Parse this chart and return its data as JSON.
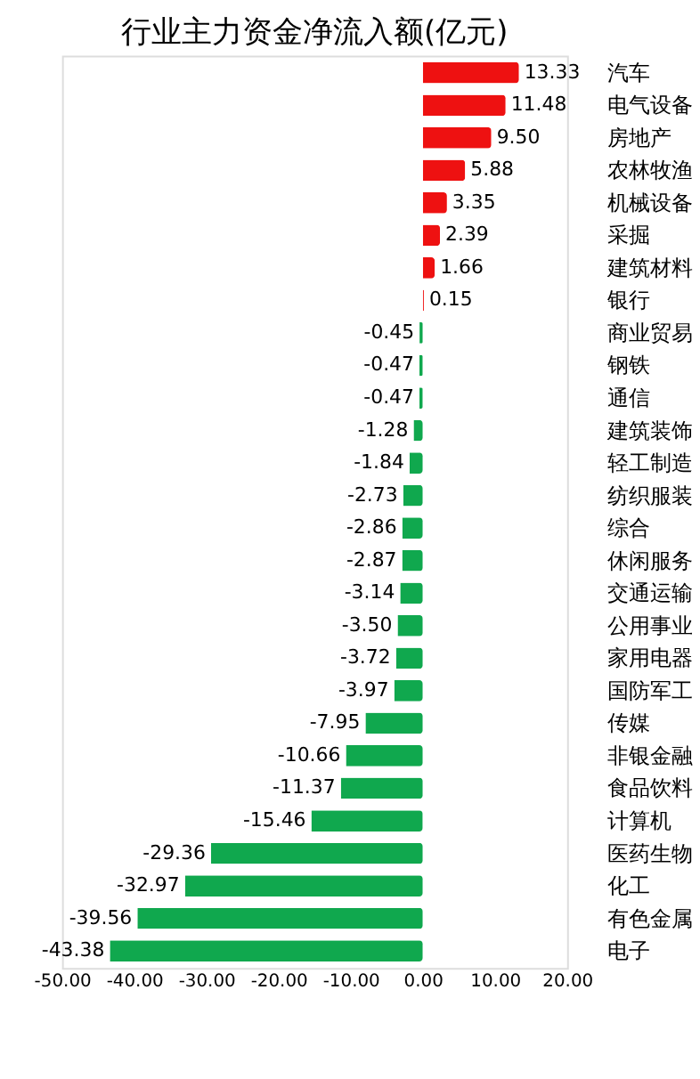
{
  "chart_data": {
    "type": "bar",
    "orientation": "horizontal",
    "title": "行业主力资金净流入额(亿元)",
    "categories": [
      "汽车",
      "电气设备",
      "房地产",
      "农林牧渔",
      "机械设备",
      "采掘",
      "建筑材料",
      "银行",
      "商业贸易",
      "钢铁",
      "通信",
      "建筑装饰",
      "轻工制造",
      "纺织服装",
      "综合",
      "休闲服务",
      "交通运输",
      "公用事业",
      "家用电器",
      "国防军工",
      "传媒",
      "非银金融",
      "食品饮料",
      "计算机",
      "医药生物",
      "化工",
      "有色金属",
      "电子"
    ],
    "values": [
      13.33,
      11.48,
      9.5,
      5.88,
      3.35,
      2.39,
      1.66,
      0.15,
      -0.45,
      -0.47,
      -0.47,
      -1.28,
      -1.84,
      -2.73,
      -2.86,
      -2.87,
      -3.14,
      -3.5,
      -3.72,
      -3.97,
      -7.95,
      -10.66,
      -11.37,
      -15.46,
      -29.36,
      -32.97,
      -39.56,
      -43.38
    ],
    "value_labels": [
      "13.33",
      "11.48",
      "9.50",
      "5.88",
      "3.35",
      "2.39",
      "1.66",
      "0.15",
      "-0.45",
      "-0.47",
      "-0.47",
      "-1.28",
      "-1.84",
      "-2.73",
      "-2.86",
      "-2.87",
      "-3.14",
      "-3.50",
      "-3.72",
      "-3.97",
      "-7.95",
      "-10.66",
      "-11.37",
      "-15.46",
      "-29.36",
      "-32.97",
      "-39.56",
      "-43.38"
    ],
    "colors": [
      "#ee1111",
      "#ee1111",
      "#ee1111",
      "#ee1111",
      "#ee1111",
      "#ee1111",
      "#ee1111",
      "#ee1111",
      "#10a84e",
      "#10a84e",
      "#10a84e",
      "#10a84e",
      "#10a84e",
      "#10a84e",
      "#10a84e",
      "#10a84e",
      "#10a84e",
      "#10a84e",
      "#10a84e",
      "#10a84e",
      "#10a84e",
      "#10a84e",
      "#10a84e",
      "#10a84e",
      "#10a84e",
      "#10a84e",
      "#10a84e",
      "#10a84e"
    ],
    "xlim": [
      -50,
      20
    ],
    "xticks": [
      {
        "value": -50,
        "label": "-50.00"
      },
      {
        "value": -40,
        "label": "-40.00"
      },
      {
        "value": -30,
        "label": "-30.00"
      },
      {
        "value": -20,
        "label": "-20.00"
      },
      {
        "value": -10,
        "label": "-10.00"
      },
      {
        "value": 0,
        "label": "0.00"
      },
      {
        "value": 10,
        "label": "10.00"
      },
      {
        "value": 20,
        "label": "20.00"
      }
    ],
    "grid": false
  }
}
